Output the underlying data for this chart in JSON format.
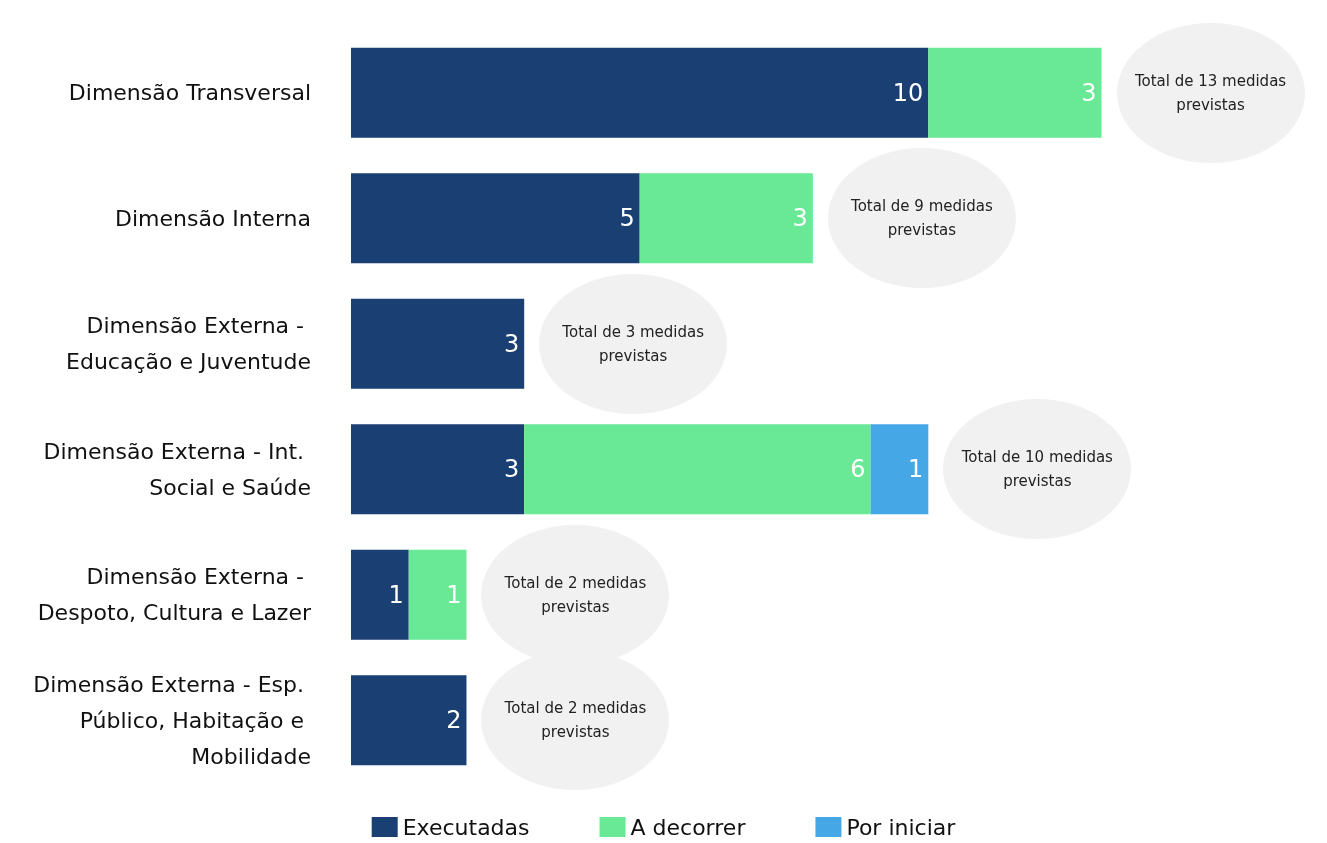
{
  "chart_data": {
    "type": "bar",
    "orientation": "horizontal",
    "stacked": true,
    "data_labels": true,
    "legend": "bottom",
    "categories": [
      "Dimensão Transversal",
      "Dimensão Interna",
      "Dimensão Externa - Educação e Juventude",
      "Dimensão Externa - Int. Social e Saúde",
      "Dimensão Externa - Despoto, Cultura e Lazer",
      "Dimensão Externa - Esp. Público, Habitação e Mobilidade"
    ],
    "series": [
      {
        "name": "Executadas",
        "color": "#1a3f73",
        "values": [
          10,
          5,
          3,
          3,
          1,
          2
        ]
      },
      {
        "name": "A decorrer",
        "color": "#69e996",
        "values": [
          3,
          3,
          null,
          6,
          1,
          null
        ]
      },
      {
        "name": "Por iniciar",
        "color": "#46a7e6",
        "values": [
          null,
          null,
          null,
          1,
          null,
          null
        ]
      }
    ],
    "totals": [
      "Total de 13 medidas previstas",
      "Total de 9 medidas previstas",
      "Total de 3 medidas previstas",
      "Total de 10 medidas previstas",
      "Total de 2 medidas previstas",
      "Total de 2 medidas previstas"
    ]
  }
}
